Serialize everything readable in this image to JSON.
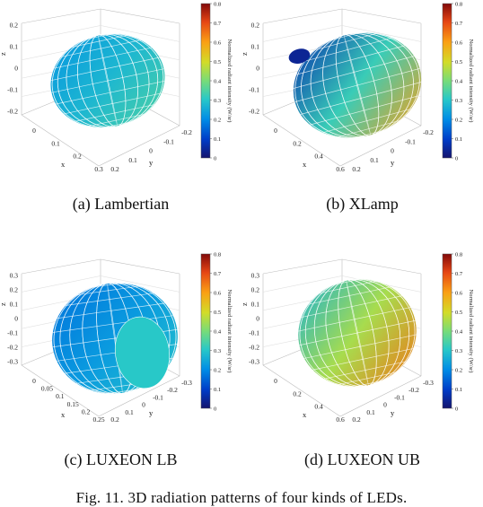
{
  "chart_data": [
    {
      "type": "3d-surface",
      "caption": "(a)  Lambertian",
      "xlabel": "x",
      "ylabel": "y",
      "zlabel": "z",
      "x_ticks": [
        "0",
        "0.1",
        "0.2",
        "0.3"
      ],
      "y_ticks": [
        "0.2",
        "0.1",
        "0",
        "-0.1",
        "-0.2"
      ],
      "z_ticks": [
        "0.2",
        "0.1",
        "0",
        "-0.1",
        "-0.2"
      ],
      "colorbar_label": "Normalized radiant intensity (W/sr)",
      "colorbar_ticks": [
        "0",
        "0.1",
        "0.2",
        "0.3",
        "0.4",
        "0.5",
        "0.6",
        "0.7",
        "0.8"
      ],
      "colorbar_range": [
        0,
        0.8
      ],
      "surface_value_range": [
        0.2,
        0.35
      ],
      "shape": "ellipsoid"
    },
    {
      "type": "3d-surface",
      "caption": "(b)  XLamp",
      "xlabel": "x",
      "ylabel": "y",
      "zlabel": "z",
      "x_ticks": [
        "0",
        "0.2",
        "0.4",
        "0.6"
      ],
      "y_ticks": [
        "0.2",
        "0.1",
        "0",
        "-0.1",
        "-0.2"
      ],
      "z_ticks": [
        "0.2",
        "0.1",
        "0",
        "-0.1",
        "-0.2"
      ],
      "colorbar_label": "Normalized radiant intensity (W/sr)",
      "colorbar_ticks": [
        "0",
        "0.1",
        "0.2",
        "0.3",
        "0.4",
        "0.5",
        "0.6",
        "0.7",
        "0.8"
      ],
      "colorbar_range": [
        0,
        0.8
      ],
      "surface_value_range": [
        0.05,
        0.6
      ],
      "shape": "ellipsoid"
    },
    {
      "type": "3d-surface",
      "caption": "(c)  LUXEON LB",
      "xlabel": "x",
      "ylabel": "y",
      "zlabel": "z",
      "x_ticks": [
        "0",
        "0.05",
        "0.1",
        "0.15",
        "0.2",
        "0.25"
      ],
      "y_ticks": [
        "0.2",
        "0.1",
        "0",
        "-0.1",
        "-0.2",
        "-0.3"
      ],
      "z_ticks": [
        "0.3",
        "0.2",
        "0.1",
        "0",
        "-0.1",
        "-0.2",
        "-0.3"
      ],
      "colorbar_label": "Normalized radiant intensity (W/sr)",
      "colorbar_ticks": [
        "0",
        "0.1",
        "0.2",
        "0.3",
        "0.4",
        "0.5",
        "0.6",
        "0.7",
        "0.8"
      ],
      "colorbar_range": [
        0,
        0.8
      ],
      "surface_value_range": [
        0.15,
        0.3
      ],
      "shape": "batwing"
    },
    {
      "type": "3d-surface",
      "caption": "(d)  LUXEON UB",
      "xlabel": "x",
      "ylabel": "y",
      "zlabel": "z",
      "x_ticks": [
        "0",
        "0.2",
        "0.4",
        "0.6"
      ],
      "y_ticks": [
        "0.2",
        "0.1",
        "0",
        "-0.1",
        "-0.2",
        "-0.3"
      ],
      "z_ticks": [
        "0.3",
        "0.2",
        "0.1",
        "0",
        "-0.1",
        "-0.2",
        "-0.3"
      ],
      "colorbar_label": "Normalized radiant intensity (W/sr)",
      "colorbar_ticks": [
        "0",
        "0.1",
        "0.2",
        "0.3",
        "0.4",
        "0.5",
        "0.6",
        "0.7",
        "0.8"
      ],
      "colorbar_range": [
        0,
        0.8
      ],
      "surface_value_range": [
        0.25,
        0.65
      ],
      "shape": "ellipsoid"
    }
  ],
  "figure_caption": "Fig. 11. 3D radiation patterns of four kinds of LEDs."
}
